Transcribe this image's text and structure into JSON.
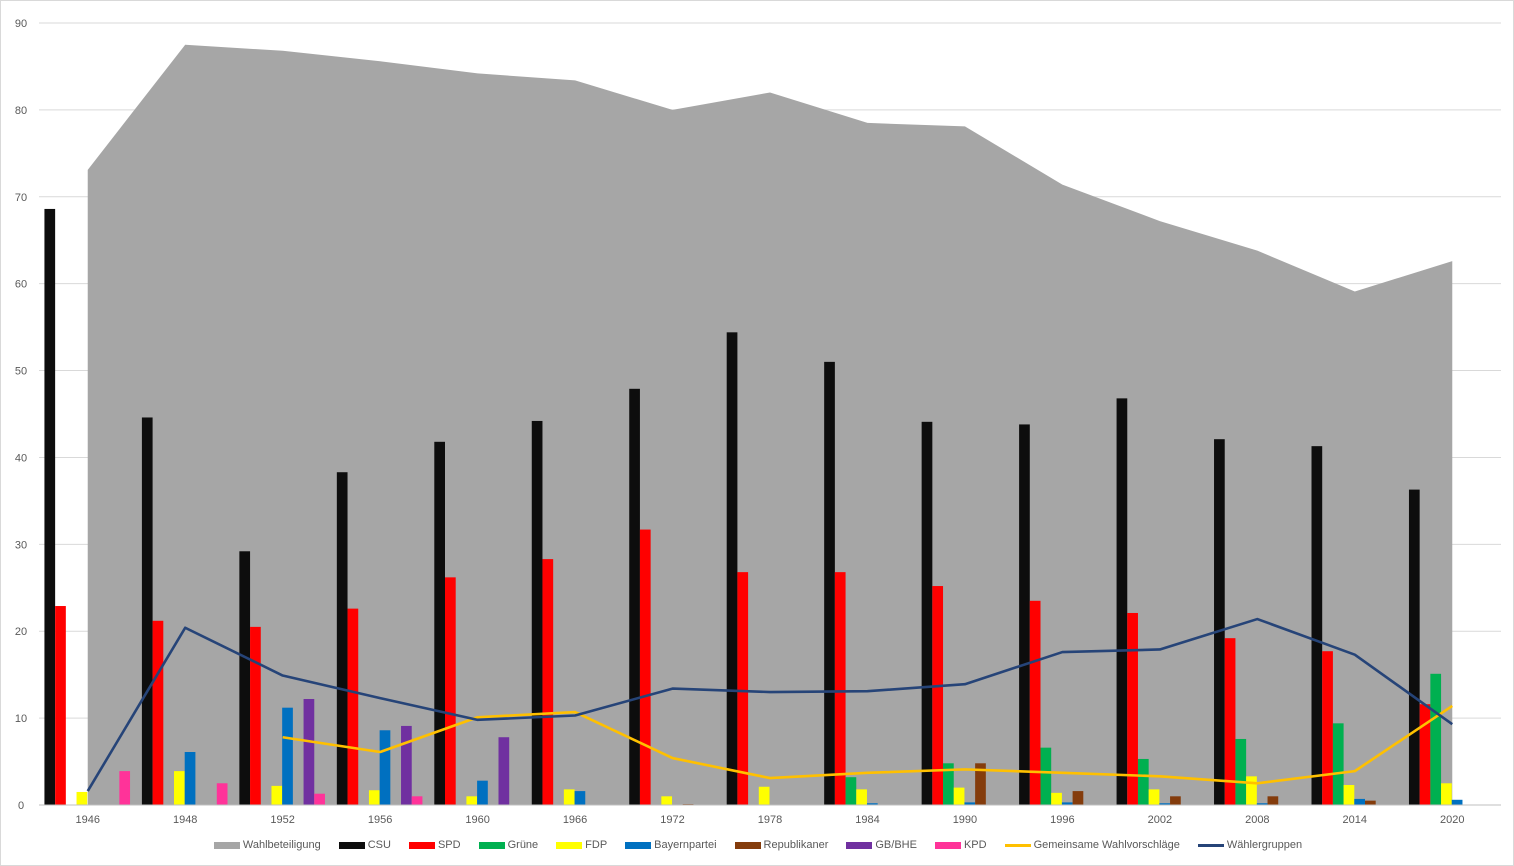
{
  "chart_data": {
    "type": "bar",
    "title": "",
    "xlabel": "",
    "ylabel": "",
    "ylim": [
      0,
      90
    ],
    "yticks": [
      "0",
      "10",
      "20",
      "30",
      "40",
      "50",
      "60",
      "70",
      "80",
      "90"
    ],
    "grid": true,
    "legend_position": "bottom",
    "categories": [
      "1946",
      "1948",
      "1952",
      "1956",
      "1960",
      "1966",
      "1972",
      "1978",
      "1984",
      "1990",
      "1996",
      "2002",
      "2008",
      "2014",
      "2020"
    ],
    "area": {
      "name": "Wahlbeteiligung",
      "color": "#a6a6a6",
      "values": [
        73.1,
        87.5,
        86.8,
        85.6,
        84.2,
        83.4,
        80.0,
        82.0,
        78.5,
        78.1,
        71.4,
        67.2,
        63.8,
        59.1,
        62.6
      ]
    },
    "series": [
      {
        "name": "CSU",
        "color": "#0d0d0d",
        "values": [
          68.6,
          44.6,
          29.2,
          38.3,
          41.8,
          44.2,
          47.9,
          54.4,
          51.0,
          44.1,
          43.8,
          46.8,
          42.1,
          41.3,
          36.3
        ]
      },
      {
        "name": "SPD",
        "color": "#ff0000",
        "values": [
          22.9,
          21.2,
          20.5,
          22.6,
          26.2,
          28.3,
          31.7,
          26.8,
          26.8,
          25.2,
          23.5,
          22.1,
          19.2,
          17.7,
          11.6
        ]
      },
      {
        "name": "Grüne",
        "color": "#00b050",
        "values": [
          null,
          null,
          null,
          null,
          null,
          null,
          null,
          null,
          3.2,
          4.8,
          6.6,
          5.3,
          7.6,
          9.4,
          15.1
        ]
      },
      {
        "name": "FDP",
        "color": "#ffff00",
        "values": [
          1.5,
          3.9,
          2.2,
          1.7,
          1.0,
          1.8,
          1.0,
          2.1,
          1.8,
          2.0,
          1.4,
          1.8,
          3.3,
          2.3,
          2.5
        ]
      },
      {
        "name": "Bayernpartei",
        "color": "#0070c0",
        "values": [
          null,
          6.1,
          11.2,
          8.6,
          2.8,
          1.6,
          null,
          null,
          0.2,
          0.3,
          0.3,
          0.2,
          0.2,
          0.7,
          0.6
        ]
      },
      {
        "name": "Republikaner",
        "color": "#843c0c",
        "values": [
          null,
          null,
          null,
          null,
          null,
          null,
          0.1,
          null,
          null,
          4.8,
          1.6,
          1.0,
          1.0,
          0.5,
          null
        ]
      },
      {
        "name": "GB/BHE",
        "color": "#7030a0",
        "values": [
          null,
          null,
          12.2,
          9.1,
          7.8,
          null,
          null,
          null,
          null,
          null,
          null,
          null,
          null,
          null,
          null
        ]
      },
      {
        "name": "KPD",
        "color": "#ff3399",
        "values": [
          3.9,
          2.5,
          1.3,
          1.0,
          null,
          null,
          null,
          null,
          null,
          null,
          null,
          null,
          null,
          null,
          null
        ]
      }
    ],
    "lines": [
      {
        "name": "Gemeinsame Wahlvorschläge",
        "color": "#ffc000",
        "values": [
          null,
          null,
          7.8,
          6.1,
          10.1,
          10.7,
          5.4,
          3.1,
          3.7,
          4.1,
          3.7,
          3.3,
          2.5,
          3.9,
          11.4
        ]
      },
      {
        "name": "Wählergruppen",
        "color": "#264478",
        "values": [
          1.6,
          20.4,
          14.9,
          12.3,
          9.8,
          10.3,
          13.4,
          13.0,
          13.1,
          13.9,
          17.6,
          17.9,
          21.4,
          17.3,
          9.3
        ]
      }
    ]
  }
}
